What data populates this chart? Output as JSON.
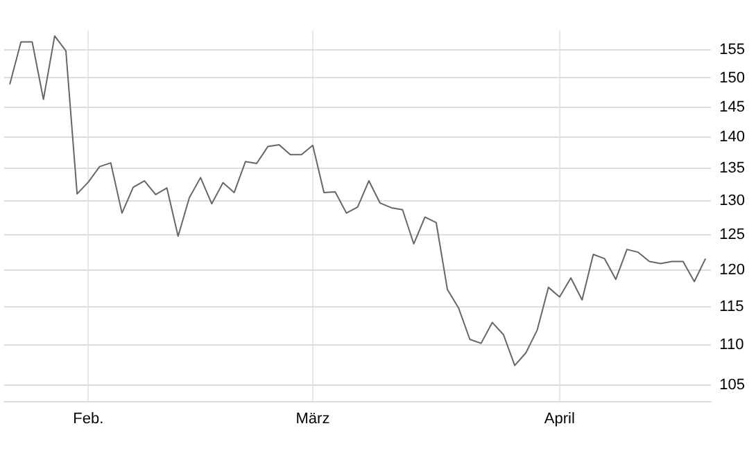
{
  "chart_data": {
    "type": "line",
    "log": true,
    "grid": true,
    "legend": false,
    "marker": "none",
    "line_style": "solid",
    "categories": [
      null,
      null,
      null,
      null,
      null,
      null,
      null,
      "Feb.",
      null,
      null,
      null,
      null,
      null,
      null,
      null,
      null,
      null,
      null,
      null,
      null,
      null,
      null,
      null,
      null,
      null,
      null,
      null,
      "März",
      null,
      null,
      null,
      null,
      null,
      null,
      null,
      null,
      null,
      null,
      null,
      null,
      null,
      null,
      null,
      null,
      null,
      null,
      null,
      null,
      null,
      "April",
      null,
      null,
      null,
      null,
      null,
      null,
      null,
      null,
      null,
      null,
      null,
      null,
      null
    ],
    "series": [
      {
        "color": "#666666",
        "values": [
          148.9,
          156.4,
          156.4,
          146.3,
          157.5,
          154.8,
          131.1,
          132.9,
          135.3,
          135.9,
          128.2,
          132.1,
          133.1,
          131.0,
          132.0,
          124.8,
          130.5,
          133.6,
          129.6,
          132.8,
          131.3,
          136.1,
          135.8,
          138.5,
          138.8,
          137.2,
          137.2,
          138.7,
          131.3,
          131.4,
          128.2,
          129.1,
          133.1,
          129.7,
          129.0,
          128.7,
          123.7,
          127.6,
          126.8,
          117.3,
          114.8,
          110.7,
          110.2,
          112.9,
          111.3,
          107.4,
          109.0,
          111.9,
          117.6,
          116.3,
          118.9,
          115.9,
          122.2,
          121.6,
          118.7,
          122.9,
          122.5,
          121.2,
          120.9,
          121.2,
          121.2,
          118.4,
          121.6
        ]
      }
    ],
    "ylim": [
      103,
      158.5
    ],
    "yticks": [
      105,
      110,
      115,
      120,
      125,
      130,
      135,
      140,
      145,
      150,
      155
    ]
  }
}
